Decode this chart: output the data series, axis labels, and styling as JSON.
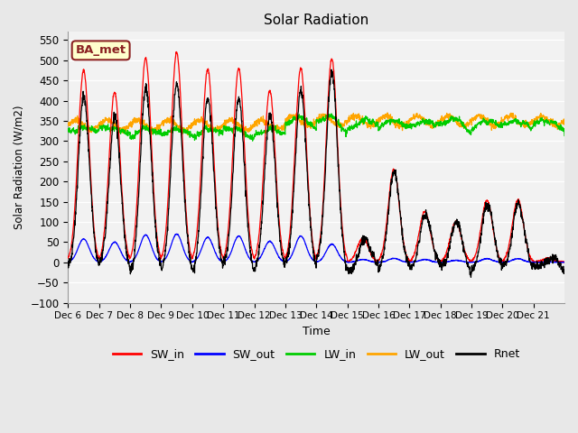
{
  "title": "Solar Radiation",
  "ylabel": "Solar Radiation (W/m2)",
  "xlabel": "Time",
  "ylim": [
    -100,
    570
  ],
  "yticks": [
    -100,
    -50,
    0,
    50,
    100,
    150,
    200,
    250,
    300,
    350,
    400,
    450,
    500,
    550
  ],
  "x_tick_positions": [
    0,
    1,
    2,
    3,
    4,
    5,
    6,
    7,
    8,
    9,
    10,
    11,
    12,
    13,
    14,
    15
  ],
  "x_labels": [
    "Dec 6",
    "Dec 7",
    "Dec 8",
    "Dec 9",
    "Dec 10",
    "Dec 11",
    "Dec 12",
    "Dec 13",
    "Dec 14",
    "Dec 15",
    "Dec 16",
    "Dec 17",
    "Dec 18",
    "Dec 19",
    "Dec 20",
    "Dec 21"
  ],
  "n_days": 16,
  "pts_per_day": 144,
  "annotation_text": "BA_met",
  "annotation_bg": "#FFFFCC",
  "annotation_border": "#8B2222",
  "colors": {
    "SW_in": "#FF0000",
    "SW_out": "#0000FF",
    "LW_in": "#00CC00",
    "LW_out": "#FFA500",
    "Rnet": "#000000"
  },
  "legend_labels": [
    "SW_in",
    "SW_out",
    "LW_in",
    "LW_out",
    "Rnet"
  ],
  "bg_color": "#E8E8E8",
  "plot_bg": "#F2F2F2"
}
